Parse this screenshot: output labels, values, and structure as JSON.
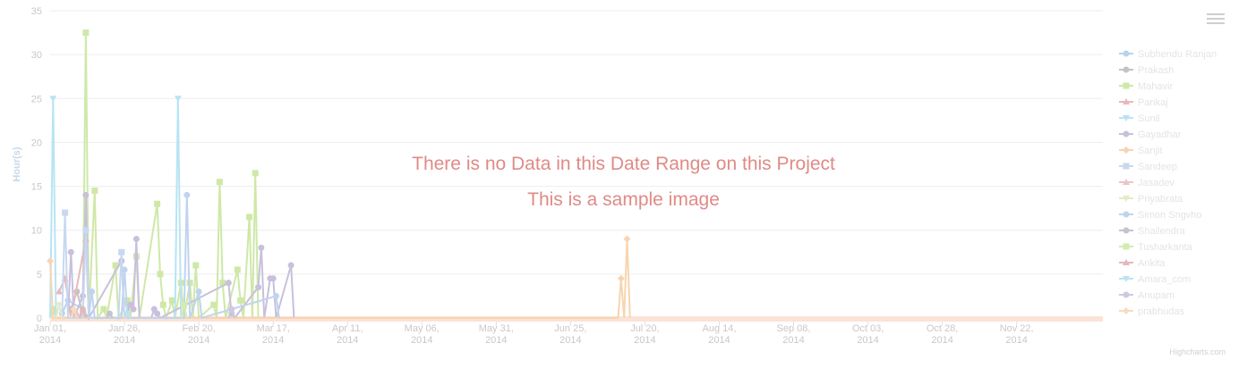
{
  "chart_data": {
    "type": "line",
    "title": "",
    "xlabel": "",
    "ylabel": "Hour(s)",
    "ylim": [
      0,
      35
    ],
    "yticks": [
      0,
      5,
      10,
      15,
      20,
      25,
      30,
      35
    ],
    "xlim": [
      "2014-01-01",
      "2014-12-21"
    ],
    "xticks": [
      {
        "date": "2014-01-01",
        "label": [
          "Jan 01,",
          "2014"
        ]
      },
      {
        "date": "2014-01-26",
        "label": [
          "Jan 26,",
          "2014"
        ]
      },
      {
        "date": "2014-02-20",
        "label": [
          "Feb 20,",
          "2014"
        ]
      },
      {
        "date": "2014-03-17",
        "label": [
          "Mar 17,",
          "2014"
        ]
      },
      {
        "date": "2014-04-11",
        "label": [
          "Apr 11,",
          "2014"
        ]
      },
      {
        "date": "2014-05-06",
        "label": [
          "May 06,",
          "2014"
        ]
      },
      {
        "date": "2014-05-31",
        "label": [
          "May 31,",
          "2014"
        ]
      },
      {
        "date": "2014-06-25",
        "label": [
          "Jun 25,",
          "2014"
        ]
      },
      {
        "date": "2014-07-20",
        "label": [
          "Jul 20,",
          "2014"
        ]
      },
      {
        "date": "2014-08-14",
        "label": [
          "Aug 14,",
          "2014"
        ]
      },
      {
        "date": "2014-09-08",
        "label": [
          "Sep 08,",
          "2014"
        ]
      },
      {
        "date": "2014-10-03",
        "label": [
          "Oct 03,",
          "2014"
        ]
      },
      {
        "date": "2014-10-28",
        "label": [
          "Oct 28,",
          "2014"
        ]
      },
      {
        "date": "2014-11-22",
        "label": [
          "Nov 22,",
          "2014"
        ]
      }
    ],
    "grid": true,
    "legend_position": "right",
    "series": [
      {
        "name": "Subhendu Ranjan",
        "color": "#b8d4ee",
        "marker": "circle",
        "points": [
          [
            "2014-01-05",
            0.5
          ],
          [
            "2014-01-07",
            2
          ],
          [
            "2014-01-12",
            1
          ],
          [
            "2014-01-14",
            0
          ]
        ]
      },
      {
        "name": "Prakash",
        "color": "#c4c4c4",
        "marker": "circle",
        "points": [
          [
            "2014-01-08",
            1
          ],
          [
            "2014-01-10",
            3
          ],
          [
            "2014-01-12",
            0.5
          ],
          [
            "2014-01-14",
            0
          ]
        ]
      },
      {
        "name": "Mahavir",
        "color": "#cfe8a8",
        "marker": "square",
        "points": [
          [
            "2014-01-01",
            0
          ],
          [
            "2014-01_02",
            1
          ],
          [
            "2014-01-03",
            0
          ],
          [
            "2014-01-12",
            0
          ],
          [
            "2014-01-13",
            32.5
          ],
          [
            "2014-01-14",
            0
          ],
          [
            "2014-01-16",
            14.5
          ],
          [
            "2014-01-17",
            0
          ],
          [
            "2014-01-19",
            1
          ],
          [
            "2014-01-20",
            0
          ],
          [
            "2014-01-23",
            6
          ],
          [
            "2014-01-24",
            0
          ],
          [
            "2014-01-27",
            2
          ],
          [
            "2014-01-28",
            0
          ],
          [
            "2014-01-30",
            7
          ],
          [
            "2014-01-31",
            0
          ],
          [
            "2014-02-06",
            13
          ],
          [
            "2014-02-07",
            5
          ],
          [
            "2014-02-08",
            1.5
          ],
          [
            "2014-02-09",
            0
          ],
          [
            "2014-02-11",
            2
          ],
          [
            "2014-02-12",
            0
          ],
          [
            "2014-02-14",
            4
          ],
          [
            "2014-02-15",
            0
          ],
          [
            "2014-02-17",
            4
          ],
          [
            "2014-02-18",
            0
          ],
          [
            "2014-02-19",
            6
          ],
          [
            "2014-02-20",
            0
          ],
          [
            "2014-02-25",
            1.5
          ],
          [
            "2014-02-26",
            0
          ],
          [
            "2014-02-27",
            15.5
          ],
          [
            "2014-02-28",
            4
          ],
          [
            "2014-03-01",
            0
          ],
          [
            "2014-03-05",
            5.5
          ],
          [
            "2014-03-06",
            2
          ],
          [
            "2014-03-07",
            0
          ],
          [
            "2014-03-09",
            11.5
          ],
          [
            "2014-03-10",
            0
          ],
          [
            "2014-03-11",
            16.5
          ],
          [
            "2014-03-12",
            0
          ]
        ]
      },
      {
        "name": "Pankaj",
        "color": "#e8b8b8",
        "marker": "triangle",
        "points": [
          [
            "2014-01-04",
            3
          ],
          [
            "2014-01-06",
            4.5
          ],
          [
            "2014-01-08",
            0
          ],
          [
            "2014-01-13",
            9
          ],
          [
            "2014-01-14",
            0
          ]
        ]
      },
      {
        "name": "Sunil",
        "color": "#b8e4f4",
        "marker": "triangle-down",
        "points": [
          [
            "2014-01-01",
            0
          ],
          [
            "2014-01-02",
            25
          ],
          [
            "2014-01-03",
            0
          ],
          [
            "2014-02-12",
            0
          ],
          [
            "2014-02-13",
            25
          ],
          [
            "2014-02-14",
            0
          ]
        ]
      },
      {
        "name": "Gayadhar",
        "color": "#c8c0dc",
        "marker": "circle",
        "points": [
          [
            "2014-01-07",
            0
          ],
          [
            "2014-01-08",
            7.5
          ],
          [
            "2014-01-09",
            0
          ],
          [
            "2014-01-12",
            2.5
          ],
          [
            "2014-01-13",
            14
          ],
          [
            "2014-01-14",
            0
          ],
          [
            "2014-01-25",
            6.5
          ],
          [
            "2014-01-26",
            0
          ],
          [
            "2014-01-28",
            1.5
          ],
          [
            "2014-01-29",
            1
          ],
          [
            "2014-01-30",
            9
          ],
          [
            "2014-01-31",
            0
          ],
          [
            "2014-02-04",
            0
          ],
          [
            "2014-02-05",
            1
          ],
          [
            "2014-02-06",
            0.5
          ],
          [
            "2014-02-07",
            0
          ],
          [
            "2014-03-02",
            4
          ],
          [
            "2014-03-03",
            0.5
          ],
          [
            "2014-03-04",
            0
          ],
          [
            "2014-03-12",
            3.5
          ],
          [
            "2014-03-13",
            8
          ],
          [
            "2014-03-14",
            0
          ],
          [
            "2014-03-16",
            4.5
          ],
          [
            "2014-03-17",
            4.5
          ],
          [
            "2014-03-18",
            0
          ],
          [
            "2014-03-23",
            6
          ],
          [
            "2014-03-24",
            0
          ]
        ]
      },
      {
        "name": "Sanjit",
        "color": "#f8d4b0",
        "marker": "diamond",
        "points": [
          [
            "2014-01-01",
            6.5
          ],
          [
            "2014-01-02",
            0
          ],
          [
            "2014-07-11",
            0
          ],
          [
            "2014-07-12",
            4.5
          ],
          [
            "2014-07-13",
            0
          ],
          [
            "2014-07-14",
            9
          ],
          [
            "2014-07-15",
            0
          ]
        ]
      },
      {
        "name": "Sandeep",
        "color": "#c8d8f0",
        "marker": "square",
        "points": [
          [
            "2014-01-05",
            0
          ],
          [
            "2014-01-06",
            12
          ],
          [
            "2014-01-07",
            0
          ],
          [
            "2014-01-12",
            0
          ],
          [
            "2014-01-13",
            10
          ],
          [
            "2014-01-14",
            0
          ],
          [
            "2014-01-24",
            0
          ],
          [
            "2014-01-25",
            7.5
          ],
          [
            "2014-01-26",
            0
          ]
        ]
      },
      {
        "name": "Jasadev",
        "color": "#ecc4c4",
        "marker": "triangle",
        "points": [
          [
            "2014-01-09",
            0
          ],
          [
            "2014-01-10",
            0.5
          ],
          [
            "2014-01-11",
            0
          ]
        ]
      },
      {
        "name": "Priyabrata",
        "color": "#e4ecc4",
        "marker": "triangle-down",
        "points": [
          [
            "2014-01-03",
            0
          ],
          [
            "2014-01-04",
            1.5
          ],
          [
            "2014-01-05",
            0
          ]
        ]
      },
      {
        "name": "Simon Sngvho",
        "color": "#c0d4f0",
        "marker": "circle",
        "points": [
          [
            "2014-01-14",
            0
          ],
          [
            "2014-01-15",
            3
          ],
          [
            "2014-01-16",
            0
          ],
          [
            "2014-01-25",
            0
          ],
          [
            "2014-01-26",
            5.5
          ],
          [
            "2014-01-27",
            0
          ],
          [
            "2014-02-15",
            0
          ],
          [
            "2014-02-16",
            14
          ],
          [
            "2014-02-17",
            0
          ],
          [
            "2014-02-20",
            3
          ],
          [
            "2014-02-21",
            0
          ],
          [
            "2014-03-18",
            2.5
          ],
          [
            "2014-03-19",
            0
          ]
        ]
      },
      {
        "name": "Shailendra",
        "color": "#c4c4cc",
        "marker": "circle",
        "points": [
          [
            "2014-01-20",
            0
          ],
          [
            "2014-01-21",
            0.5
          ],
          [
            "2014-01-22",
            0
          ]
        ]
      },
      {
        "name": "Tusharkanta",
        "color": "#d4ecb0",
        "marker": "square",
        "points": [
          [
            "2014-02-14",
            0
          ],
          [
            "2014-02-15",
            1.5
          ],
          [
            "2014-02-16",
            0
          ]
        ]
      },
      {
        "name": "Ankita",
        "color": "#e4b8b8",
        "marker": "triangle",
        "points": [
          [
            "2014-01-11",
            0
          ],
          [
            "2014-01-12",
            1
          ],
          [
            "2014-01-13",
            0
          ]
        ]
      },
      {
        "name": "Amara_com",
        "color": "#bce4f0",
        "marker": "triangle-down",
        "points": [
          [
            "2014-01-26",
            0
          ],
          [
            "2014-01-27",
            0.5
          ],
          [
            "2014-01-28",
            0
          ]
        ]
      },
      {
        "name": "Anupam",
        "color": "#d0c8e0",
        "marker": "circle",
        "points": [
          [
            "2014-03-02",
            0
          ],
          [
            "2014-03-03",
            1
          ],
          [
            "2014-03-04",
            0
          ]
        ]
      },
      {
        "name": "prabhudas",
        "color": "#f8dcc0",
        "marker": "diamond",
        "points": [
          [
            "2014-01-08",
            0
          ],
          [
            "2014-01-09",
            1
          ],
          [
            "2014-01-10",
            0
          ]
        ]
      }
    ],
    "annotations": [
      "There is no Data in this Date Range on this Project",
      "This is a sample image"
    ]
  },
  "overlay": {
    "message": "There is no Data in this Date Range on this Project",
    "sample": "This is a sample image"
  },
  "credits": "Highcharts.com",
  "colors": {
    "message": "#e08a86",
    "gridline": "#ededed",
    "baseline_fill": "#fbe3d6"
  },
  "icons": {
    "menu": "hamburger-menu-icon"
  }
}
